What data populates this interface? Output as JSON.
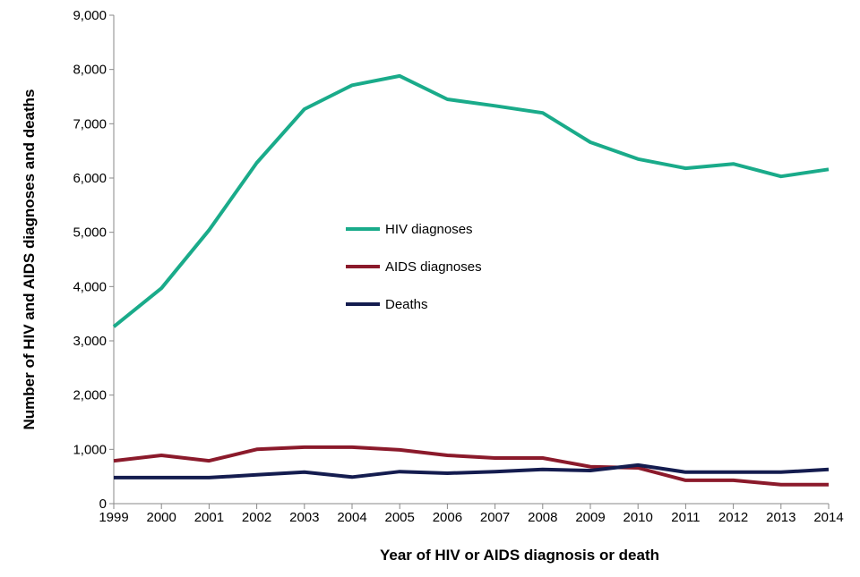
{
  "chart_data": {
    "type": "line",
    "title": "",
    "xlabel": "Year of HIV or AIDS diagnosis or death",
    "ylabel": "Number of HIV and AIDS diagnoses and deaths",
    "ylim": [
      0,
      9000
    ],
    "yticks": [
      "0",
      "1,000",
      "2,000",
      "3,000",
      "4,000",
      "5,000",
      "6,000",
      "7,000",
      "8,000",
      "9,000"
    ],
    "ytick_values": [
      0,
      1000,
      2000,
      3000,
      4000,
      5000,
      6000,
      7000,
      8000,
      9000
    ],
    "x": [
      "1999",
      "2000",
      "2001",
      "2002",
      "2003",
      "2004",
      "2005",
      "2006",
      "2007",
      "2008",
      "2009",
      "2010",
      "2011",
      "2012",
      "2013",
      "2014"
    ],
    "grid": false,
    "legend_position": "center-left",
    "series": [
      {
        "name": "HIV diagnoses",
        "color": "#1aab8a",
        "values": [
          3260,
          3970,
          5040,
          6280,
          7270,
          7710,
          7880,
          7450,
          7330,
          7200,
          6660,
          6350,
          6180,
          6260,
          6030,
          6160
        ]
      },
      {
        "name": "AIDS diagnoses",
        "color": "#8b1a2b",
        "values": [
          790,
          890,
          790,
          1000,
          1040,
          1040,
          990,
          890,
          840,
          840,
          680,
          660,
          430,
          430,
          350,
          350
        ]
      },
      {
        "name": "Deaths",
        "color": "#141c4f",
        "values": [
          480,
          480,
          480,
          530,
          580,
          490,
          590,
          560,
          590,
          630,
          610,
          710,
          580,
          580,
          580,
          630
        ]
      }
    ]
  }
}
